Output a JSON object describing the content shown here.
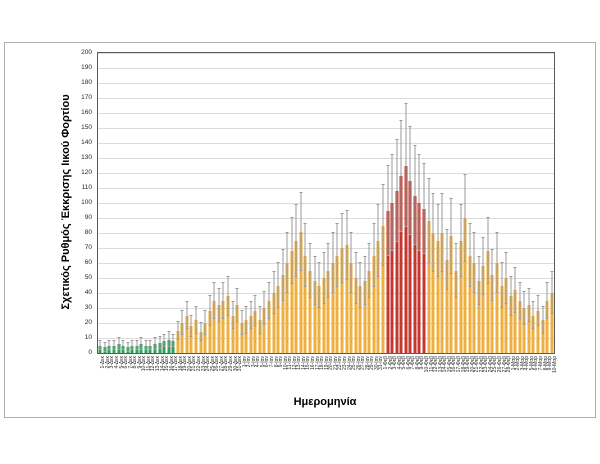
{
  "chart_data": {
    "type": "bar",
    "title": "",
    "xlabel": "Ημερομηνία",
    "ylabel": "Σχετικός Ρυθμός Έκκρισης Ιικού Φορτίου",
    "ylim": [
      0,
      200
    ],
    "ytick_step": 10,
    "grid": true,
    "error_bars": true,
    "legend": "none",
    "colors": {
      "baseline_green": "#2ea05a",
      "elevated_orange": "#eeaf3e",
      "peak_red": "#c4372f",
      "error_bar": "#999999",
      "gridline": "#dcdcdc",
      "plot_border": "#5a5a5a",
      "frame_border": "#adadad"
    },
    "color_groups": [
      {
        "color": "baseline_green",
        "from": 0,
        "to": 16
      },
      {
        "color": "elevated_orange",
        "from": 17,
        "to": 62
      },
      {
        "color": "peak_red",
        "from": 63,
        "to": 71
      },
      {
        "color": "elevated_orange",
        "from": 72,
        "to": 99
      }
    ],
    "dates": [
      "1-Δεκ",
      "2-Δεκ",
      "3-Δεκ",
      "4-Δεκ",
      "5-Δεκ",
      "6-Δεκ",
      "7-Δεκ",
      "8-Δεκ",
      "9-Δεκ",
      "10-Δεκ",
      "11-Δεκ",
      "12-Δεκ",
      "13-Δεκ",
      "14-Δεκ",
      "15-Δεκ",
      "16-Δεκ",
      "17-Δεκ",
      "18-Δεκ",
      "19-Δεκ",
      "20-Δεκ",
      "21-Δεκ",
      "22-Δεκ",
      "23-Δεκ",
      "24-Δεκ",
      "25-Δεκ",
      "26-Δεκ",
      "27-Δεκ",
      "28-Δεκ",
      "29-Δεκ",
      "30-Δεκ",
      "31-Δεκ",
      "1-Ιαν",
      "2-Ιαν",
      "3-Ιαν",
      "4-Ιαν",
      "5-Ιαν",
      "6-Ιαν",
      "7-Ιαν",
      "8-Ιαν",
      "9-Ιαν",
      "10-Ιαν",
      "11-Ιαν",
      "12-Ιαν",
      "13-Ιαν",
      "14-Ιαν",
      "15-Ιαν",
      "16-Ιαν",
      "17-Ιαν",
      "18-Ιαν",
      "19-Ιαν",
      "20-Ιαν",
      "21-Ιαν",
      "22-Ιαν",
      "23-Ιαν",
      "24-Ιαν",
      "25-Ιαν",
      "26-Ιαν",
      "27-Ιαν",
      "28-Ιαν",
      "29-Ιαν",
      "30-Ιαν",
      "31-Ιαν",
      "1-Φεβ",
      "2-Φεβ",
      "3-Φεβ",
      "4-Φεβ",
      "5-Φεβ",
      "6-Φεβ",
      "7-Φεβ",
      "8-Φεβ",
      "9-Φεβ",
      "10-Φεβ",
      "11-Φεβ",
      "12-Φεβ",
      "13-Φεβ",
      "14-Φεβ",
      "15-Φεβ",
      "16-Φεβ",
      "17-Φεβ",
      "18-Φεβ",
      "19-Φεβ",
      "20-Φεβ",
      "21-Φεβ",
      "22-Φεβ",
      "23-Φεβ",
      "24-Φεβ",
      "25-Φεβ",
      "26-Φεβ",
      "27-Φεβ",
      "28-Φεβ",
      "1-Μαρ",
      "2-Μαρ",
      "3-Μαρ",
      "4-Μαρ",
      "5-Μαρ",
      "6-Μαρ",
      "7-Μαρ",
      "8-Μαρ",
      "9-Μαρ",
      "10-Μαρ"
    ],
    "values": [
      5,
      4,
      5,
      5,
      6,
      5,
      4,
      5,
      5,
      6,
      5,
      5,
      6,
      7,
      8,
      9,
      8,
      15,
      20,
      25,
      18,
      22,
      14,
      20,
      28,
      35,
      32,
      35,
      38,
      25,
      32,
      20,
      22,
      25,
      28,
      22,
      30,
      35,
      40,
      45,
      52,
      60,
      68,
      75,
      81,
      65,
      55,
      48,
      45,
      50,
      55,
      60,
      65,
      70,
      72,
      60,
      50,
      45,
      48,
      55,
      65,
      75,
      85,
      95,
      100,
      108,
      118,
      125,
      115,
      105,
      100,
      96,
      88,
      80,
      75,
      80,
      62,
      78,
      55,
      75,
      90,
      65,
      60,
      48,
      58,
      68,
      52,
      60,
      45,
      50,
      38,
      42,
      35,
      30,
      32,
      25,
      28,
      22,
      35,
      40
    ],
    "errors": [
      3,
      3,
      3,
      3,
      4,
      3,
      3,
      3,
      3,
      4,
      3,
      3,
      4,
      4,
      4,
      5,
      4,
      6,
      8,
      9,
      7,
      9,
      6,
      8,
      10,
      12,
      11,
      12,
      13,
      9,
      11,
      8,
      9,
      9,
      10,
      9,
      11,
      12,
      14,
      15,
      17,
      20,
      22,
      24,
      26,
      21,
      18,
      16,
      15,
      17,
      18,
      20,
      21,
      23,
      23,
      20,
      17,
      15,
      16,
      18,
      21,
      24,
      27,
      30,
      32,
      34,
      37,
      41,
      36,
      33,
      32,
      30,
      28,
      26,
      24,
      26,
      20,
      25,
      18,
      24,
      29,
      21,
      20,
      16,
      19,
      22,
      17,
      20,
      15,
      17,
      13,
      15,
      12,
      11,
      11,
      9,
      10,
      9,
      12,
      14
    ]
  }
}
